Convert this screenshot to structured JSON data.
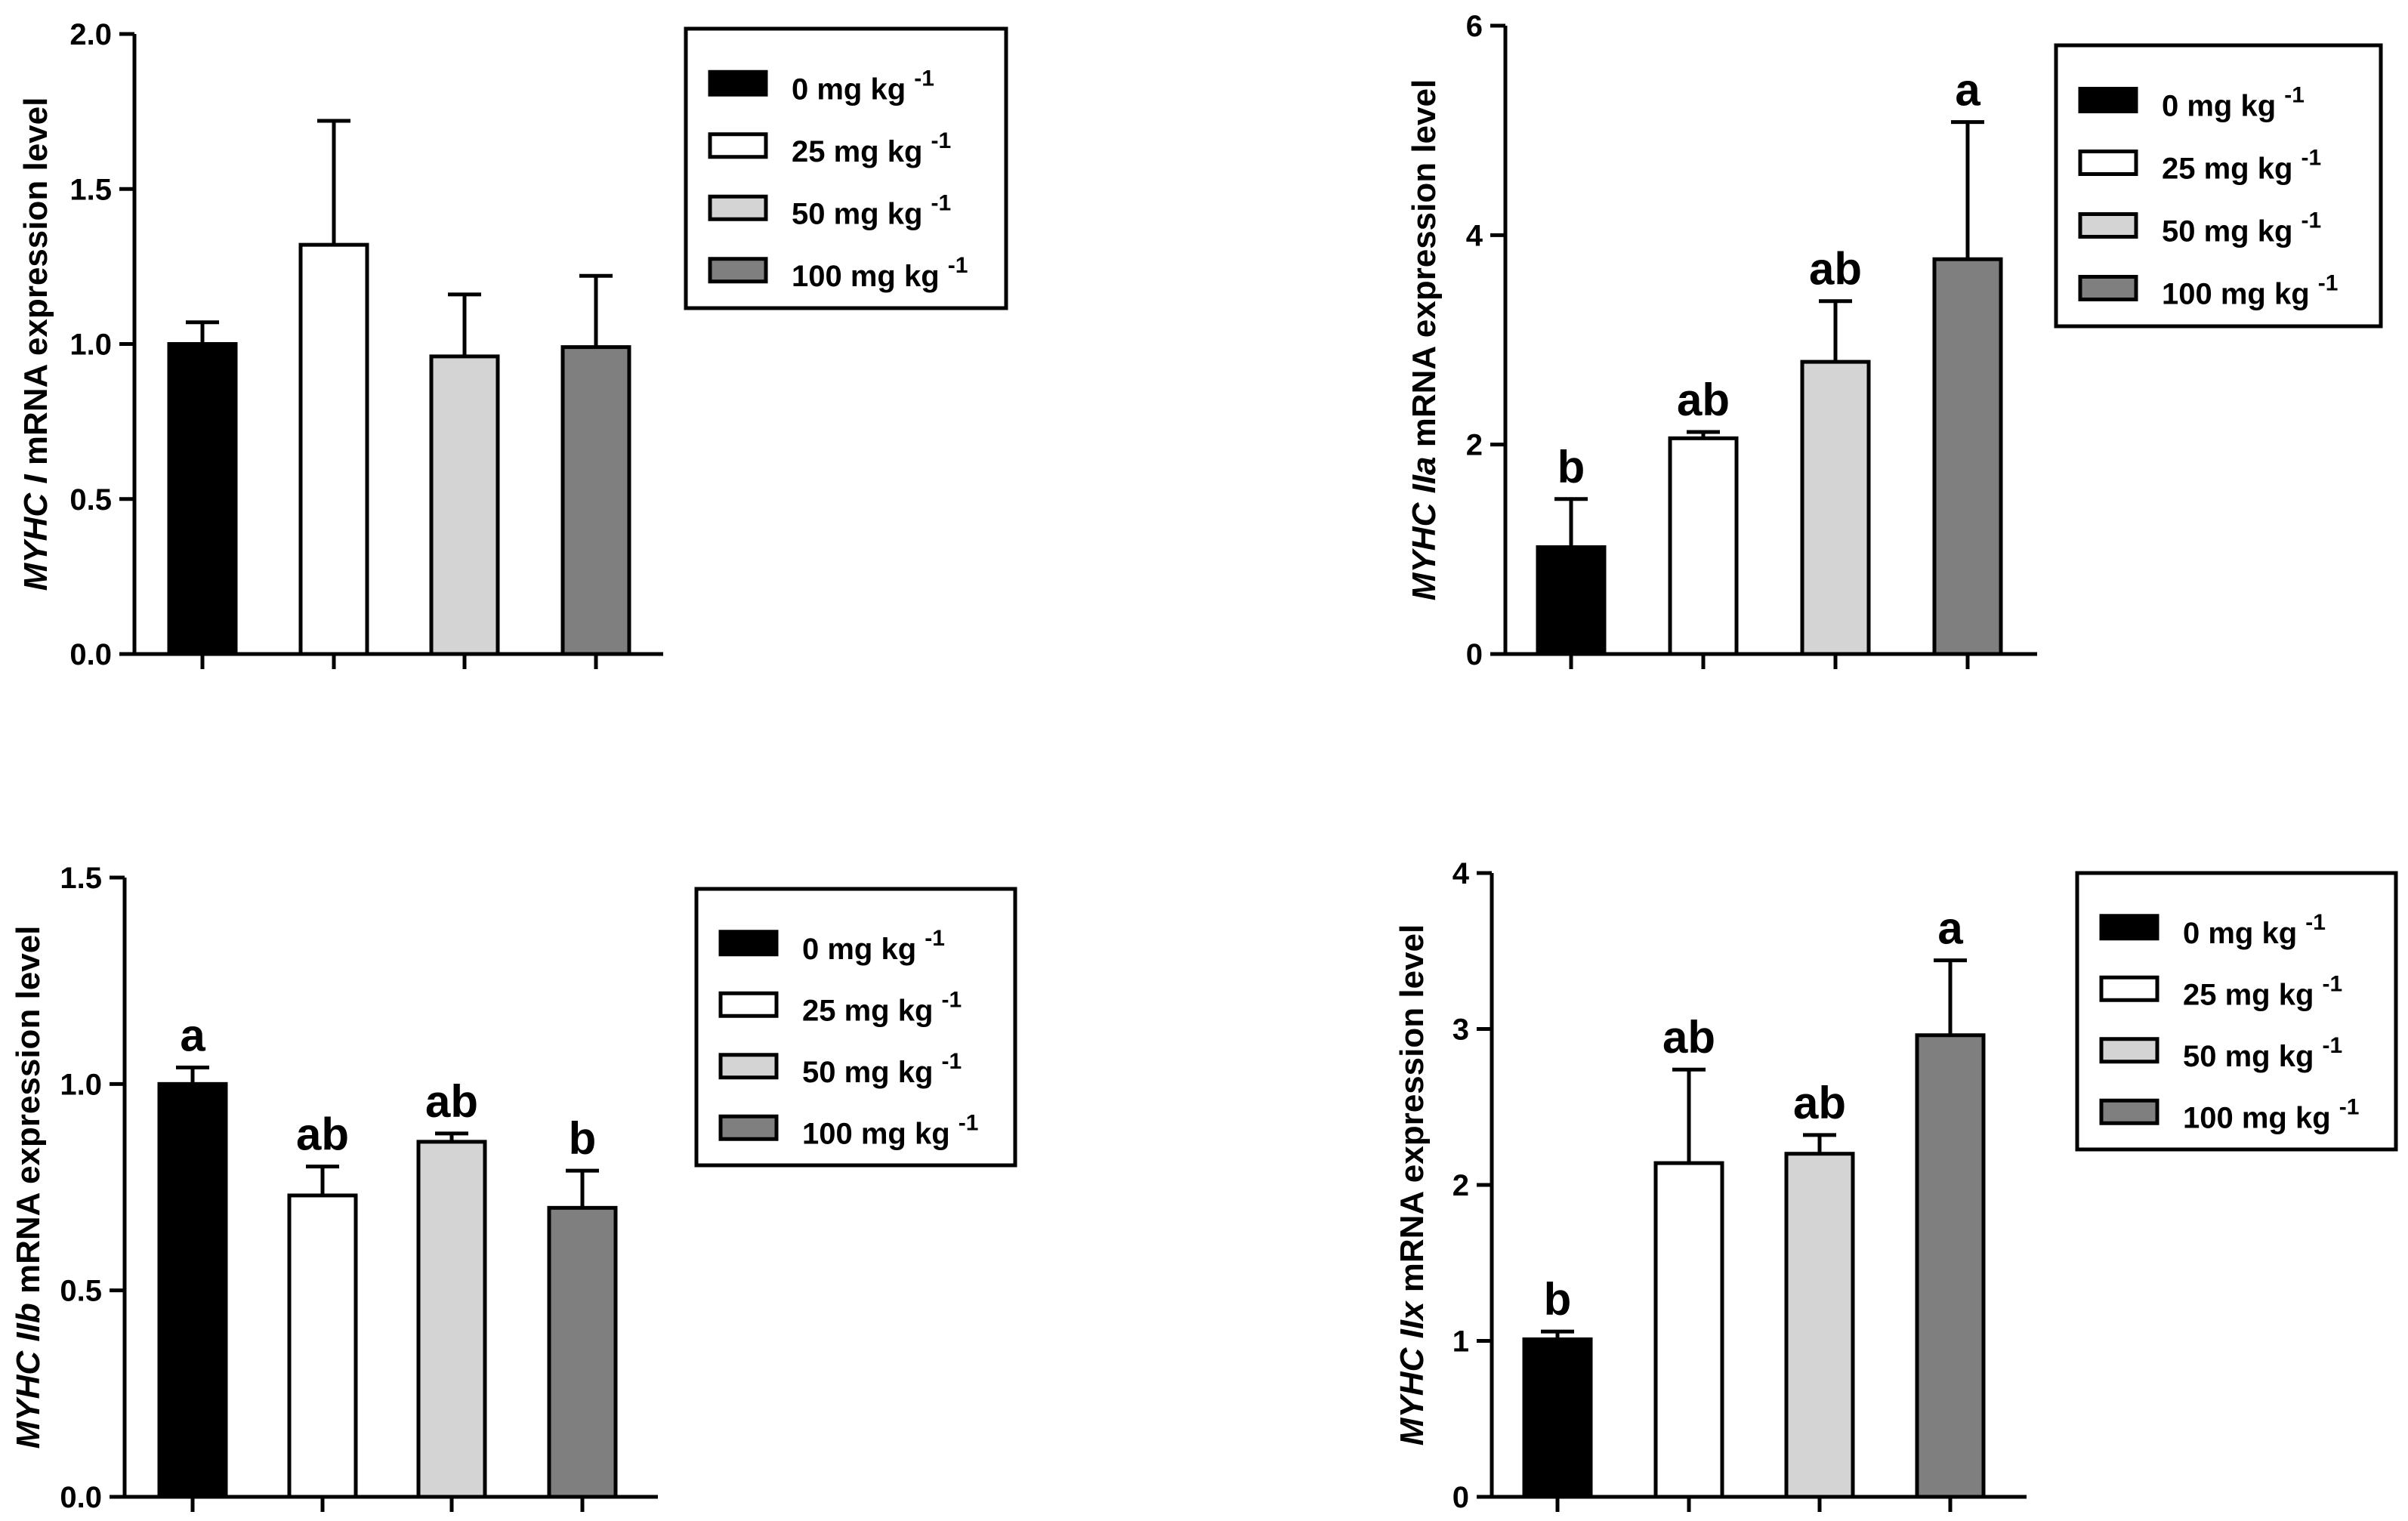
{
  "chart_data": [
    {
      "type": "bar",
      "panel": "top-left",
      "gene": "MYHC I",
      "ylabel_suffix": " mRNA expression level",
      "categories": [
        "0 mg kg -1",
        "25 mg kg -1",
        "50 mg kg -1",
        "100 mg kg -1"
      ],
      "values": [
        1.0,
        1.32,
        0.96,
        0.99
      ],
      "errors": [
        0.07,
        0.4,
        0.2,
        0.23
      ],
      "letters": [
        "",
        "",
        "",
        ""
      ],
      "ylim": [
        0,
        2.0
      ],
      "yticks": [
        "0.0",
        "0.5",
        "1.0",
        "1.5",
        "2.0"
      ],
      "legend_placement": "top-right"
    },
    {
      "type": "bar",
      "panel": "top-right",
      "gene": "MYHC IIa",
      "ylabel_suffix": " mRNA expression level",
      "categories": [
        "0 mg kg -1",
        "25 mg kg -1",
        "50 mg kg -1",
        "100 mg kg -1"
      ],
      "values": [
        1.02,
        2.06,
        2.79,
        3.77
      ],
      "errors": [
        0.46,
        0.06,
        0.58,
        1.31
      ],
      "letters": [
        "b",
        "ab",
        "ab",
        "a"
      ],
      "ylim": [
        0,
        6
      ],
      "yticks": [
        "0",
        "2",
        "4",
        "6"
      ],
      "legend_placement": "top-right"
    },
    {
      "type": "bar",
      "panel": "bottom-left",
      "gene": "MYHC IIb",
      "ylabel_suffix": " mRNA expression level",
      "categories": [
        "0 mg kg -1",
        "25 mg kg -1",
        "50 mg kg -1",
        "100 mg kg -1"
      ],
      "values": [
        1.0,
        0.73,
        0.86,
        0.7
      ],
      "errors": [
        0.04,
        0.07,
        0.02,
        0.09
      ],
      "letters": [
        "a",
        "ab",
        "ab",
        "b"
      ],
      "ylim": [
        0,
        1.5
      ],
      "yticks": [
        "0.0",
        "0.5",
        "1.0",
        "1.5"
      ],
      "legend_placement": "top-right"
    },
    {
      "type": "bar",
      "panel": "bottom-right",
      "gene": "MYHC IIx",
      "ylabel_suffix": " mRNA expression level",
      "categories": [
        "0 mg kg -1",
        "25 mg kg -1",
        "50 mg kg -1",
        "100 mg kg -1"
      ],
      "values": [
        1.01,
        2.14,
        2.2,
        2.96
      ],
      "errors": [
        0.05,
        0.6,
        0.12,
        0.48
      ],
      "letters": [
        "b",
        "ab",
        "ab",
        "a"
      ],
      "ylim": [
        0,
        4
      ],
      "yticks": [
        "0",
        "1",
        "2",
        "3",
        "4"
      ],
      "legend_placement": "top-right"
    }
  ],
  "legend": {
    "entries": [
      {
        "text": "0 mg kg",
        "sup": "-1"
      },
      {
        "text": "25 mg kg",
        "sup": "-1"
      },
      {
        "text": "50 mg kg",
        "sup": "-1"
      },
      {
        "text": "100 mg kg",
        "sup": "-1"
      }
    ]
  },
  "colors": {
    "series_fills": [
      "#000000",
      "#ffffff",
      "#d4d4d4",
      "#7f7f7f"
    ],
    "stroke": "#000000"
  }
}
